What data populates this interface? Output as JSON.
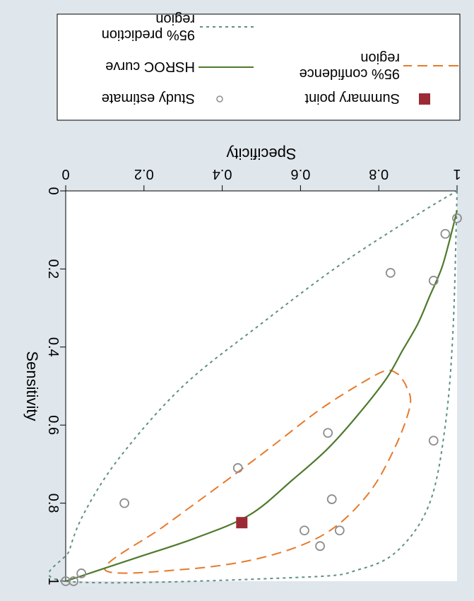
{
  "chart_data": {
    "type": "scatter",
    "xlabel": "Specificity",
    "ylabel": "Sensitivity",
    "xlim": [
      1,
      0
    ],
    "ylim": [
      0,
      1
    ],
    "x_ticks": [
      "1",
      "0.8",
      "0.6",
      "0.4",
      "0.2",
      "0"
    ],
    "y_ticks": [
      "0",
      "0.2",
      "0.4",
      "0.6",
      "0.8",
      "1"
    ],
    "grid": false,
    "legend_placement": "top",
    "render_rotation_deg": 180,
    "series": [
      {
        "name": "Study estimate",
        "points": [
          {
            "x": 1.0,
            "y": 0.07
          },
          {
            "x": 0.97,
            "y": 0.11
          },
          {
            "x": 0.94,
            "y": 0.23
          },
          {
            "x": 0.83,
            "y": 0.21
          },
          {
            "x": 0.94,
            "y": 0.64
          },
          {
            "x": 0.67,
            "y": 0.62
          },
          {
            "x": 0.44,
            "y": 0.71
          },
          {
            "x": 0.15,
            "y": 0.8
          },
          {
            "x": 0.68,
            "y": 0.79
          },
          {
            "x": 0.7,
            "y": 0.87
          },
          {
            "x": 0.61,
            "y": 0.87
          },
          {
            "x": 0.65,
            "y": 0.91
          },
          {
            "x": 0.04,
            "y": 0.98
          },
          {
            "x": 0.02,
            "y": 1.0
          },
          {
            "x": 0.0,
            "y": 1.0
          }
        ]
      },
      {
        "name": "Summary point",
        "points": [
          {
            "x": 0.45,
            "y": 0.85
          }
        ]
      },
      {
        "name": "HSROC curve",
        "points": [
          {
            "x": 1.0,
            "y": 0.05
          },
          {
            "x": 0.98,
            "y": 0.13
          },
          {
            "x": 0.96,
            "y": 0.2
          },
          {
            "x": 0.93,
            "y": 0.27
          },
          {
            "x": 0.9,
            "y": 0.34
          },
          {
            "x": 0.86,
            "y": 0.41
          },
          {
            "x": 0.82,
            "y": 0.48
          },
          {
            "x": 0.75,
            "y": 0.57
          },
          {
            "x": 0.67,
            "y": 0.66
          },
          {
            "x": 0.58,
            "y": 0.74
          },
          {
            "x": 0.47,
            "y": 0.83
          },
          {
            "x": 0.33,
            "y": 0.89
          },
          {
            "x": 0.18,
            "y": 0.94
          },
          {
            "x": 0.0,
            "y": 1.0
          }
        ]
      },
      {
        "name": "95% confidence region",
        "points": [
          {
            "x": 0.85,
            "y": 0.47
          },
          {
            "x": 0.82,
            "y": 0.46
          },
          {
            "x": 0.76,
            "y": 0.49
          },
          {
            "x": 0.65,
            "y": 0.56
          },
          {
            "x": 0.52,
            "y": 0.66
          },
          {
            "x": 0.4,
            "y": 0.75
          },
          {
            "x": 0.25,
            "y": 0.86
          },
          {
            "x": 0.1,
            "y": 0.97
          },
          {
            "x": 0.3,
            "y": 0.97
          },
          {
            "x": 0.5,
            "y": 0.94
          },
          {
            "x": 0.66,
            "y": 0.88
          },
          {
            "x": 0.77,
            "y": 0.78
          },
          {
            "x": 0.84,
            "y": 0.66
          },
          {
            "x": 0.88,
            "y": 0.55
          },
          {
            "x": 0.87,
            "y": 0.5
          },
          {
            "x": 0.85,
            "y": 0.47
          }
        ]
      },
      {
        "name": "95% prediction region",
        "points": [
          {
            "x": 1.0,
            "y": 0.0
          },
          {
            "x": 0.99,
            "y": 0.35
          },
          {
            "x": 0.97,
            "y": 0.6
          },
          {
            "x": 0.93,
            "y": 0.8
          },
          {
            "x": 0.85,
            "y": 0.92
          },
          {
            "x": 0.75,
            "y": 0.97
          },
          {
            "x": 0.6,
            "y": 0.99
          },
          {
            "x": 0.0,
            "y": 1.0
          },
          {
            "x": 0.01,
            "y": 0.92
          },
          {
            "x": 0.05,
            "y": 0.82
          },
          {
            "x": 0.14,
            "y": 0.68
          },
          {
            "x": 0.3,
            "y": 0.5
          },
          {
            "x": 0.5,
            "y": 0.34
          },
          {
            "x": 0.7,
            "y": 0.19
          },
          {
            "x": 0.9,
            "y": 0.06
          },
          {
            "x": 1.0,
            "y": 0.0
          }
        ]
      }
    ],
    "legend": [
      {
        "label": "95% prediction region",
        "lines": [
          "95% prediction",
          "region"
        ],
        "symbol": "dotted-line",
        "color": "#5f8f86"
      },
      {
        "label": "HSROC curve",
        "lines": [
          "HSROC curve"
        ],
        "symbol": "line",
        "color": "#4f7a2c"
      },
      {
        "label": "95% confidence region",
        "lines": [
          "95% confidence",
          "region"
        ],
        "symbol": "dashed-line",
        "color": "#e67a2c"
      },
      {
        "label": "Study estimate",
        "lines": [
          "Study estimate"
        ],
        "symbol": "hollow-circle",
        "color": "#8d8d8d"
      },
      {
        "label": "Summary point",
        "lines": [
          "Summary point"
        ],
        "symbol": "filled-square",
        "color": "#9b2a35"
      }
    ],
    "colors": {
      "background": "#dfe6ec",
      "plot_background": "#ffffff",
      "hsroc": "#4f7a2c",
      "confidence": "#e67a2c",
      "prediction": "#5f8f86",
      "study": "#8d8d8d",
      "summary": "#9b2a35"
    }
  }
}
